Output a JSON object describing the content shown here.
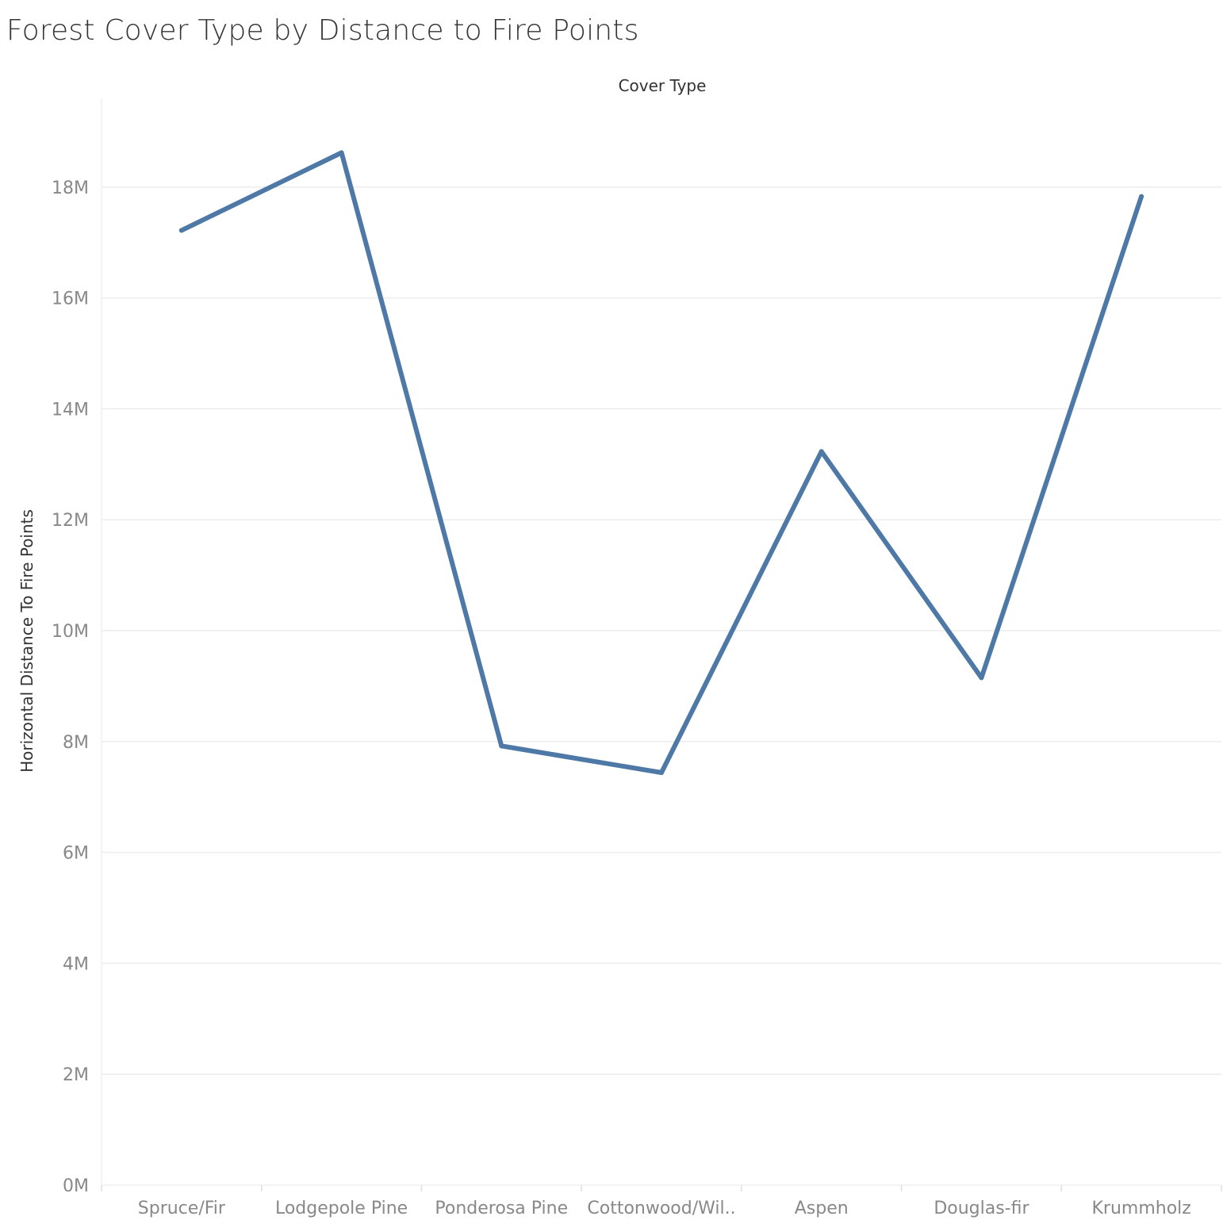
{
  "chart_data": {
    "type": "line",
    "title": "Forest Cover Type by Distance to Fire Points",
    "column_header": "Cover Type",
    "xlabel": "",
    "ylabel": "Horizontal Distance To Fire Points",
    "categories": [
      "Spruce/Fir",
      "Lodgepole Pine",
      "Ponderosa Pine",
      "Cottonwood/Wil..",
      "Aspen",
      "Douglas-fir",
      "Krummholz"
    ],
    "values": [
      17220000,
      18620000,
      7920000,
      7440000,
      13230000,
      9150000,
      17830000
    ],
    "ylim": [
      0,
      19600000
    ],
    "yticks": [
      0,
      2000000,
      4000000,
      6000000,
      8000000,
      10000000,
      12000000,
      14000000,
      16000000,
      18000000
    ],
    "ytick_labels": [
      "0M",
      "2M",
      "4M",
      "6M",
      "8M",
      "10M",
      "12M",
      "14M",
      "16M",
      "18M"
    ],
    "grid": true,
    "line_color": "#4e79a7",
    "grid_color": "#ececec",
    "tick_label_color": "#888888",
    "axis_title_color": "#333333"
  }
}
